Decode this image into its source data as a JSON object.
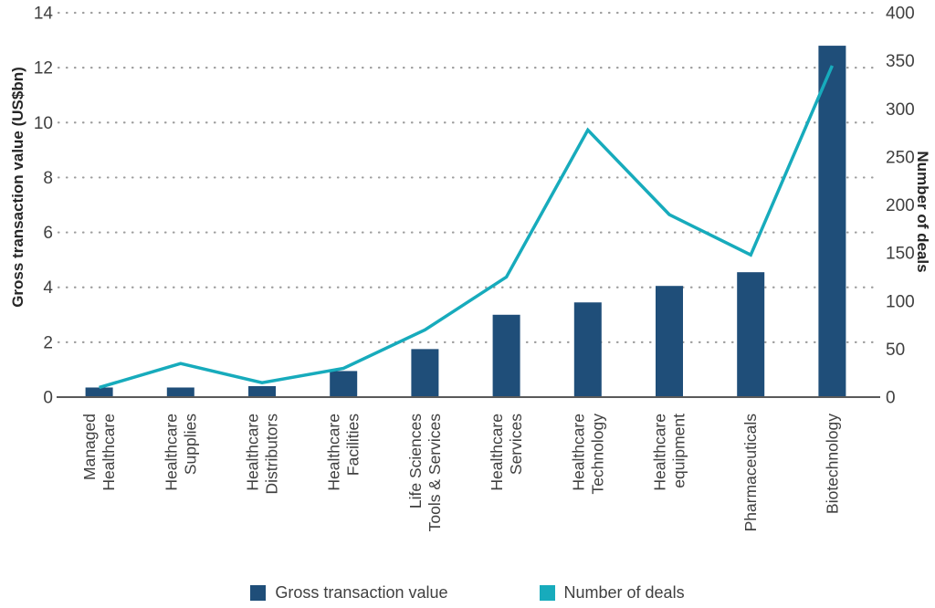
{
  "chart_data": {
    "type": "combo-bar-line",
    "categories": [
      "Managed\nHealthcare",
      "Healthcare\nSupplies",
      "Healthcare\nDistributors",
      "Healthcare\nFacilities",
      "Life Sciences\nTools & Services",
      "Healthcare\nServices",
      "Healthcare\nTechnology",
      "Healthcare\nequipment",
      "Pharmaceuticals",
      "Biotechnology"
    ],
    "series": [
      {
        "name": "Gross transaction value",
        "type": "bar",
        "axis": "left",
        "color": "#1f4e79",
        "values": [
          0.35,
          0.35,
          0.4,
          0.95,
          1.75,
          3.0,
          3.45,
          4.05,
          4.55,
          12.8
        ]
      },
      {
        "name": "Number of deals",
        "type": "line",
        "axis": "right",
        "color": "#17abbc",
        "values": [
          10,
          35,
          15,
          30,
          70,
          125,
          278,
          190,
          148,
          345
        ]
      }
    ],
    "left_axis": {
      "label": "Gross transaction value (US$bn)",
      "ticks": [
        0,
        2,
        4,
        6,
        8,
        10,
        12,
        14
      ],
      "range": [
        0,
        14
      ]
    },
    "right_axis": {
      "label": "Number of deals",
      "ticks": [
        0,
        50,
        100,
        150,
        200,
        250,
        300,
        350,
        400
      ],
      "range": [
        0,
        400
      ]
    },
    "grid": "dotted horizontal gridlines at every left-axis tick",
    "legend_position": "bottom-center",
    "colors": {
      "bar": "#1f4e79",
      "line": "#17abbc",
      "grid_dots": "#9e9e9e",
      "axis_line": "#595959",
      "tick_text": "#404040"
    }
  }
}
